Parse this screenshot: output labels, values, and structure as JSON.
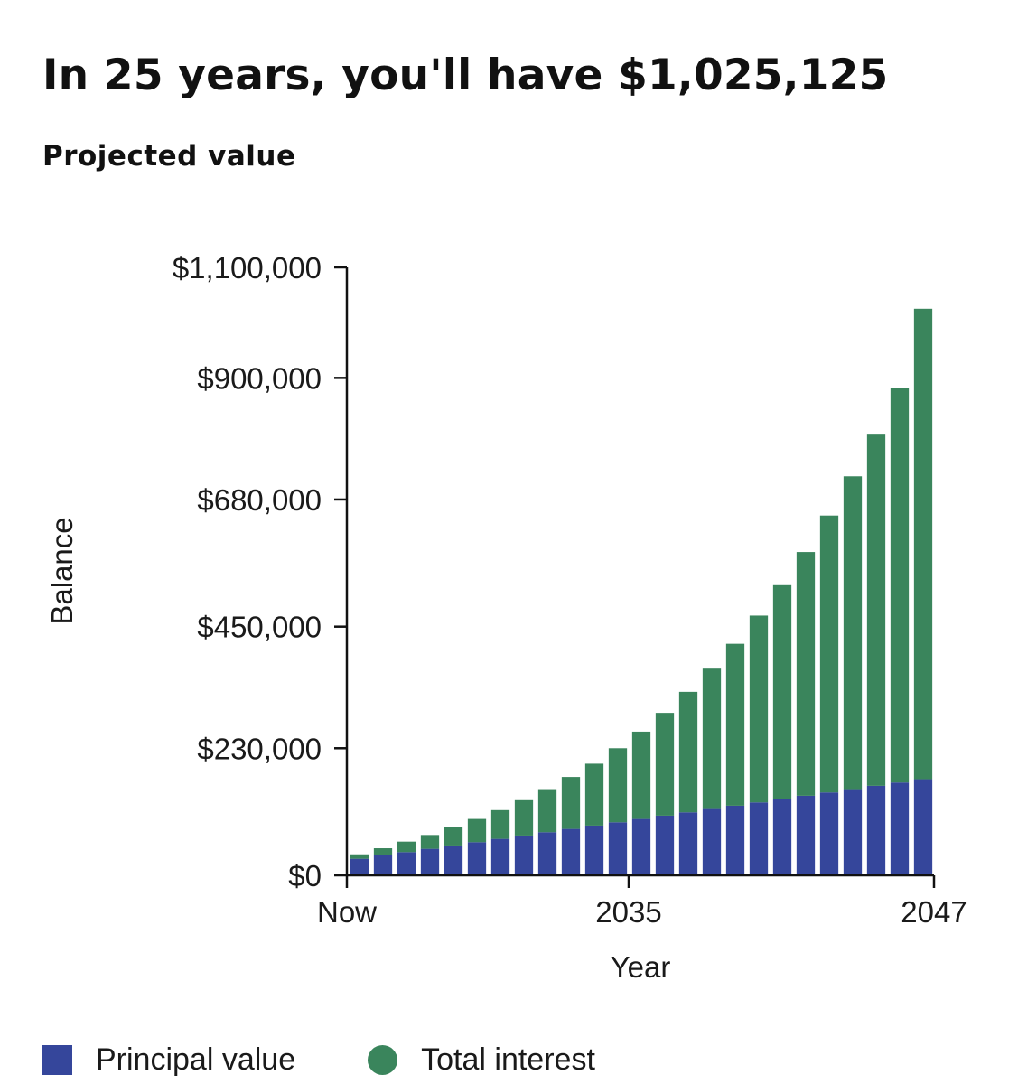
{
  "header": {
    "title": "In 25 years, you'll have $1,025,125",
    "subtitle": "Projected value"
  },
  "colors": {
    "principal": "#35469b",
    "interest": "#3a855c",
    "axis": "#111111"
  },
  "chart_data": {
    "type": "bar",
    "stacked": true,
    "xlabel": "Year",
    "ylabel": "Balance",
    "ylim": [
      0,
      1100000
    ],
    "y_tick_values": [
      0,
      230000,
      450000,
      680000,
      900000,
      1100000
    ],
    "y_tick_labels": [
      "$0",
      "$230,000",
      "$450,000",
      "$680,000",
      "$900,000",
      "$1,100,000"
    ],
    "x_tick_labels": [
      {
        "index": 0,
        "label": "Now"
      },
      {
        "index": 12,
        "label": "2035"
      },
      {
        "index": 25,
        "label": "2047"
      }
    ],
    "legend": "bottom-left",
    "grid": false,
    "bar_count": 25,
    "series": [
      {
        "name": "Principal value",
        "values": [
          30000,
          36000,
          42000,
          48000,
          54000,
          60000,
          66000,
          72000,
          78000,
          84000,
          90000,
          96000,
          102000,
          108000,
          114000,
          120000,
          126000,
          132000,
          138000,
          144000,
          150000,
          156000,
          162000,
          168000,
          174000
        ]
      },
      {
        "name": "Total interest",
        "values": [
          8000,
          13000,
          19000,
          25000,
          33000,
          42000,
          52000,
          64000,
          78000,
          94000,
          112000,
          134000,
          158000,
          186000,
          218000,
          254000,
          293000,
          338000,
          387000,
          441000,
          501000,
          566000,
          637000,
          713000,
          851125
        ]
      }
    ]
  },
  "legend": {
    "principal_label": "Principal value",
    "interest_label": "Total interest"
  }
}
